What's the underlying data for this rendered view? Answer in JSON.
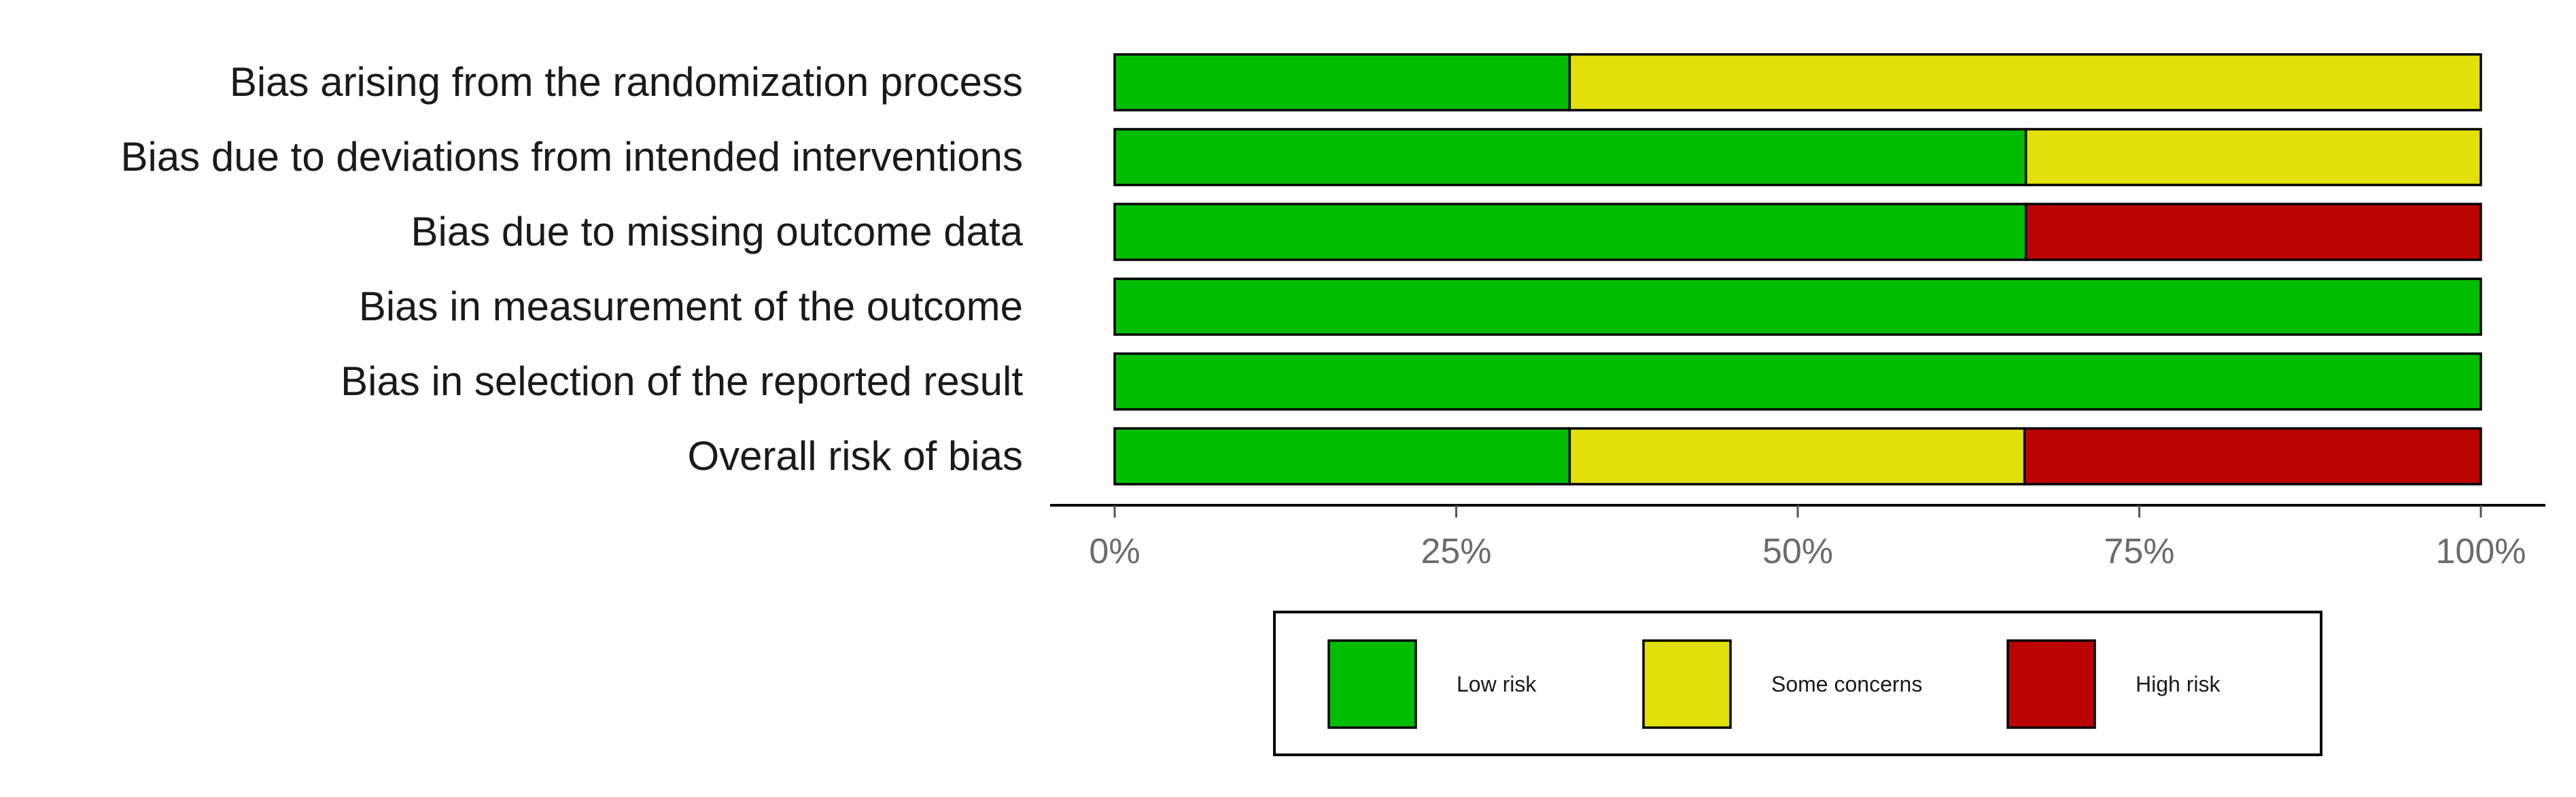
{
  "chart_data": {
    "type": "bar",
    "stacked": true,
    "orientation": "horizontal",
    "categories": [
      "Bias arising from the randomization process",
      "Bias due to deviations from intended interventions",
      "Bias due to missing outcome data",
      "Bias in measurement of the outcome",
      "Bias in selection of the reported result",
      "Overall risk of bias"
    ],
    "series": [
      {
        "name": "Low risk",
        "color": "#03bd03",
        "values": [
          33.3,
          66.7,
          66.7,
          100,
          100,
          33.3
        ]
      },
      {
        "name": "Some concerns",
        "color": "#e2df0a",
        "values": [
          66.7,
          33.3,
          0,
          0,
          0,
          33.3
        ]
      },
      {
        "name": "High risk",
        "color": "#bc0303",
        "values": [
          0,
          0,
          33.3,
          0,
          0,
          33.4
        ]
      }
    ],
    "xticks": [
      "0%",
      "25%",
      "50%",
      "75%",
      "100%"
    ],
    "xlim": [
      0,
      100
    ],
    "xlabel": "",
    "ylabel": "",
    "grid": false,
    "legend_position": "bottom"
  }
}
